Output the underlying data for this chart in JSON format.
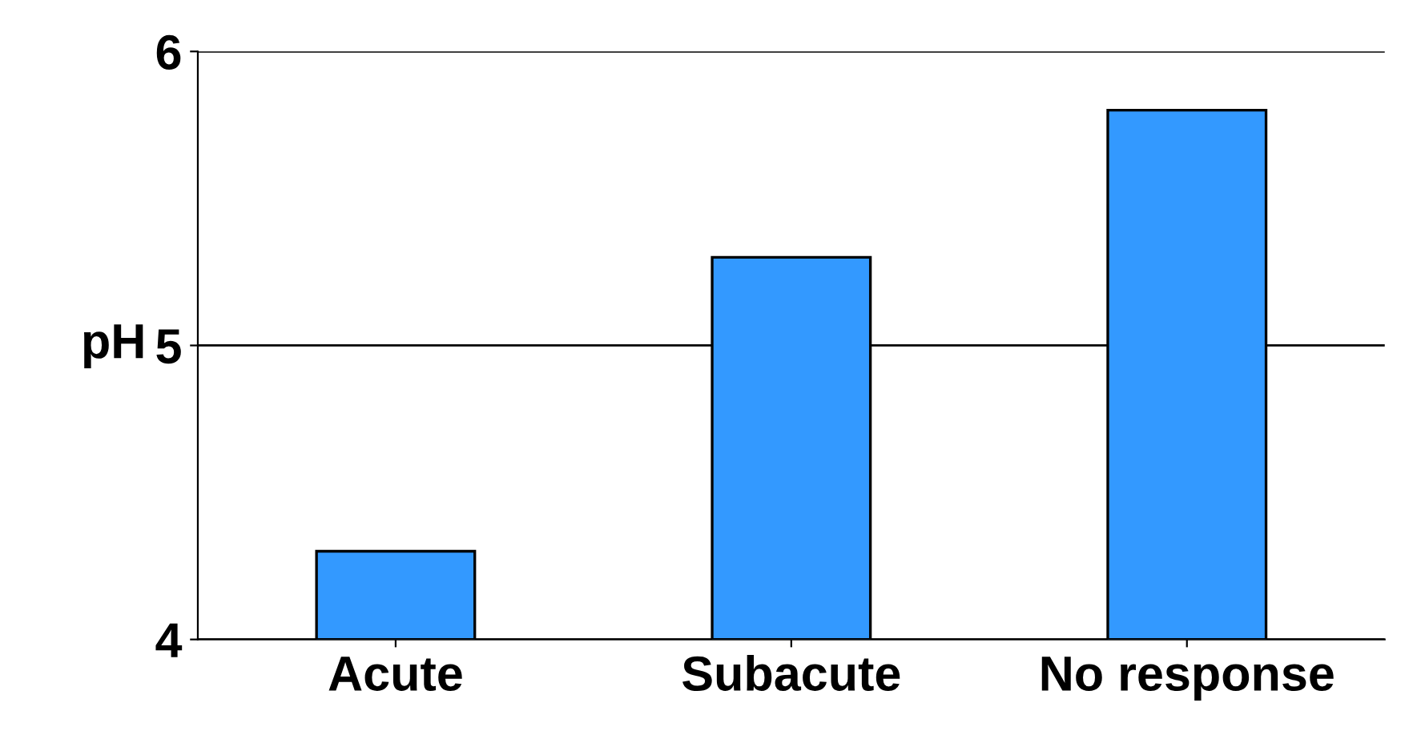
{
  "chart_data": {
    "type": "bar",
    "ylabel": "pH",
    "categories": [
      "Acute",
      "Subacute",
      "No response"
    ],
    "values": [
      4.3,
      5.3,
      5.8
    ],
    "color": "#3399ff",
    "ylim": [
      4,
      6
    ],
    "yticks": [
      4,
      5,
      6
    ],
    "grid": "y"
  }
}
